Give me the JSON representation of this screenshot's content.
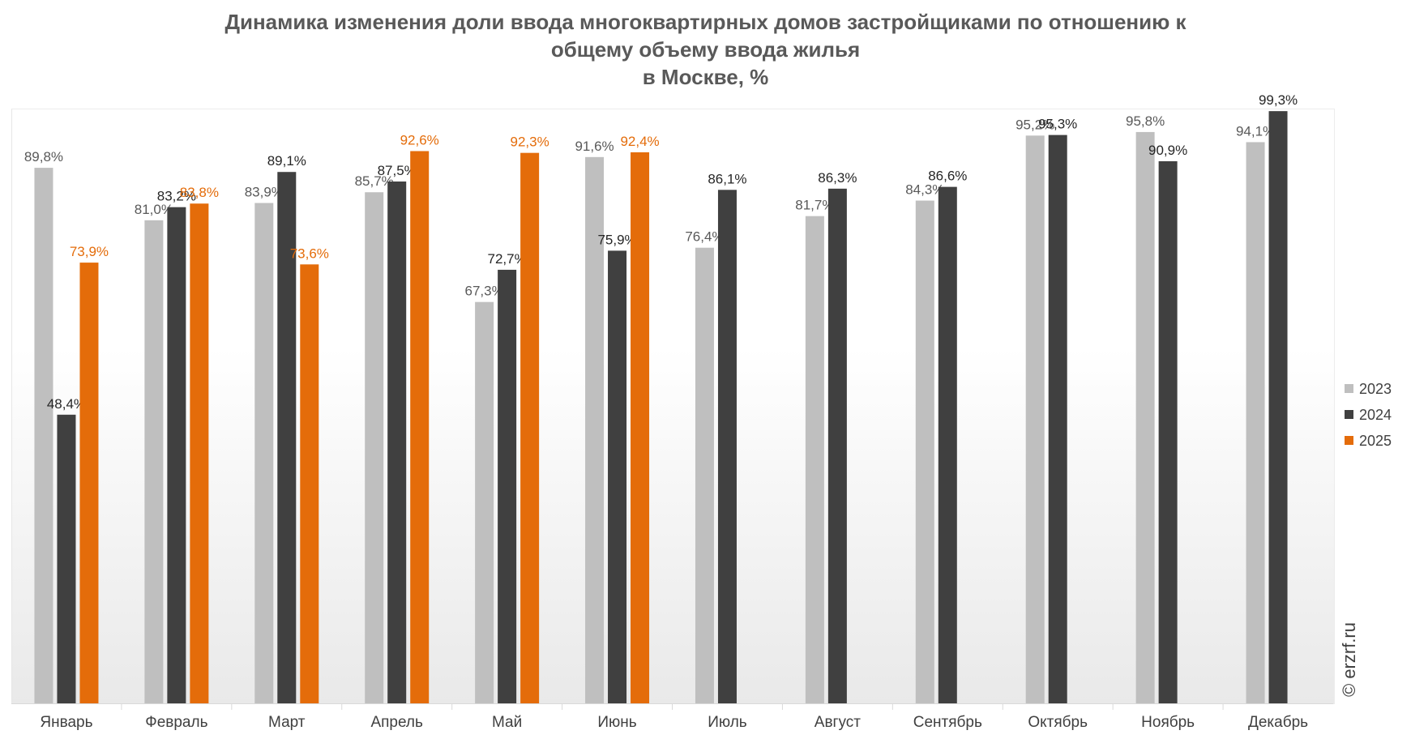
{
  "chart_data": {
    "type": "bar",
    "title_lines": [
      "Динамика изменения доли ввода многоквартирных домов застройщиками по отношению к",
      "общему объему ввода жилья",
      "в Москве, %"
    ],
    "categories": [
      "Январь",
      "Февраль",
      "Март",
      "Апрель",
      "Май",
      "Июнь",
      "Июль",
      "Август",
      "Сентябрь",
      "Октябрь",
      "Ноябрь",
      "Декабрь"
    ],
    "series": [
      {
        "name": "2023",
        "color": "#bfbfbf",
        "label_color": "#595959",
        "values": [
          89.8,
          81.0,
          83.9,
          85.7,
          67.3,
          91.6,
          76.4,
          81.7,
          84.3,
          95.2,
          95.8,
          94.1
        ],
        "labels": [
          "89,8%",
          "81,0%",
          "83,9%",
          "85,7%",
          "67,3%",
          "91,6%",
          "76,4%",
          "81,7%",
          "84,3%",
          "95,2%",
          "95,8%",
          "94,1%"
        ]
      },
      {
        "name": "2024",
        "color": "#404040",
        "label_color": "#262626",
        "values": [
          48.4,
          83.2,
          89.1,
          87.5,
          72.7,
          75.9,
          86.1,
          86.3,
          86.6,
          95.3,
          90.9,
          99.3
        ],
        "labels": [
          "48,4%",
          "83,2%",
          "89,1%",
          "87,5%",
          "72,7%",
          "75,9%",
          "86,1%",
          "86,3%",
          "86,6%",
          "95,3%",
          "90,9%",
          "99,3%"
        ]
      },
      {
        "name": "2025",
        "color": "#e46c0a",
        "label_color": "#e46c0a",
        "values": [
          73.9,
          83.8,
          73.6,
          92.6,
          92.3,
          92.4,
          null,
          null,
          null,
          null,
          null,
          null
        ],
        "labels": [
          "73,9%",
          "83,8%",
          "73,6%",
          "92,6%",
          "92,3%",
          "92,4%",
          null,
          null,
          null,
          null,
          null,
          null
        ]
      }
    ],
    "legend_position": "right",
    "grid": false,
    "ylim": [
      0,
      100
    ]
  },
  "watermark": "© erzrf.ru"
}
